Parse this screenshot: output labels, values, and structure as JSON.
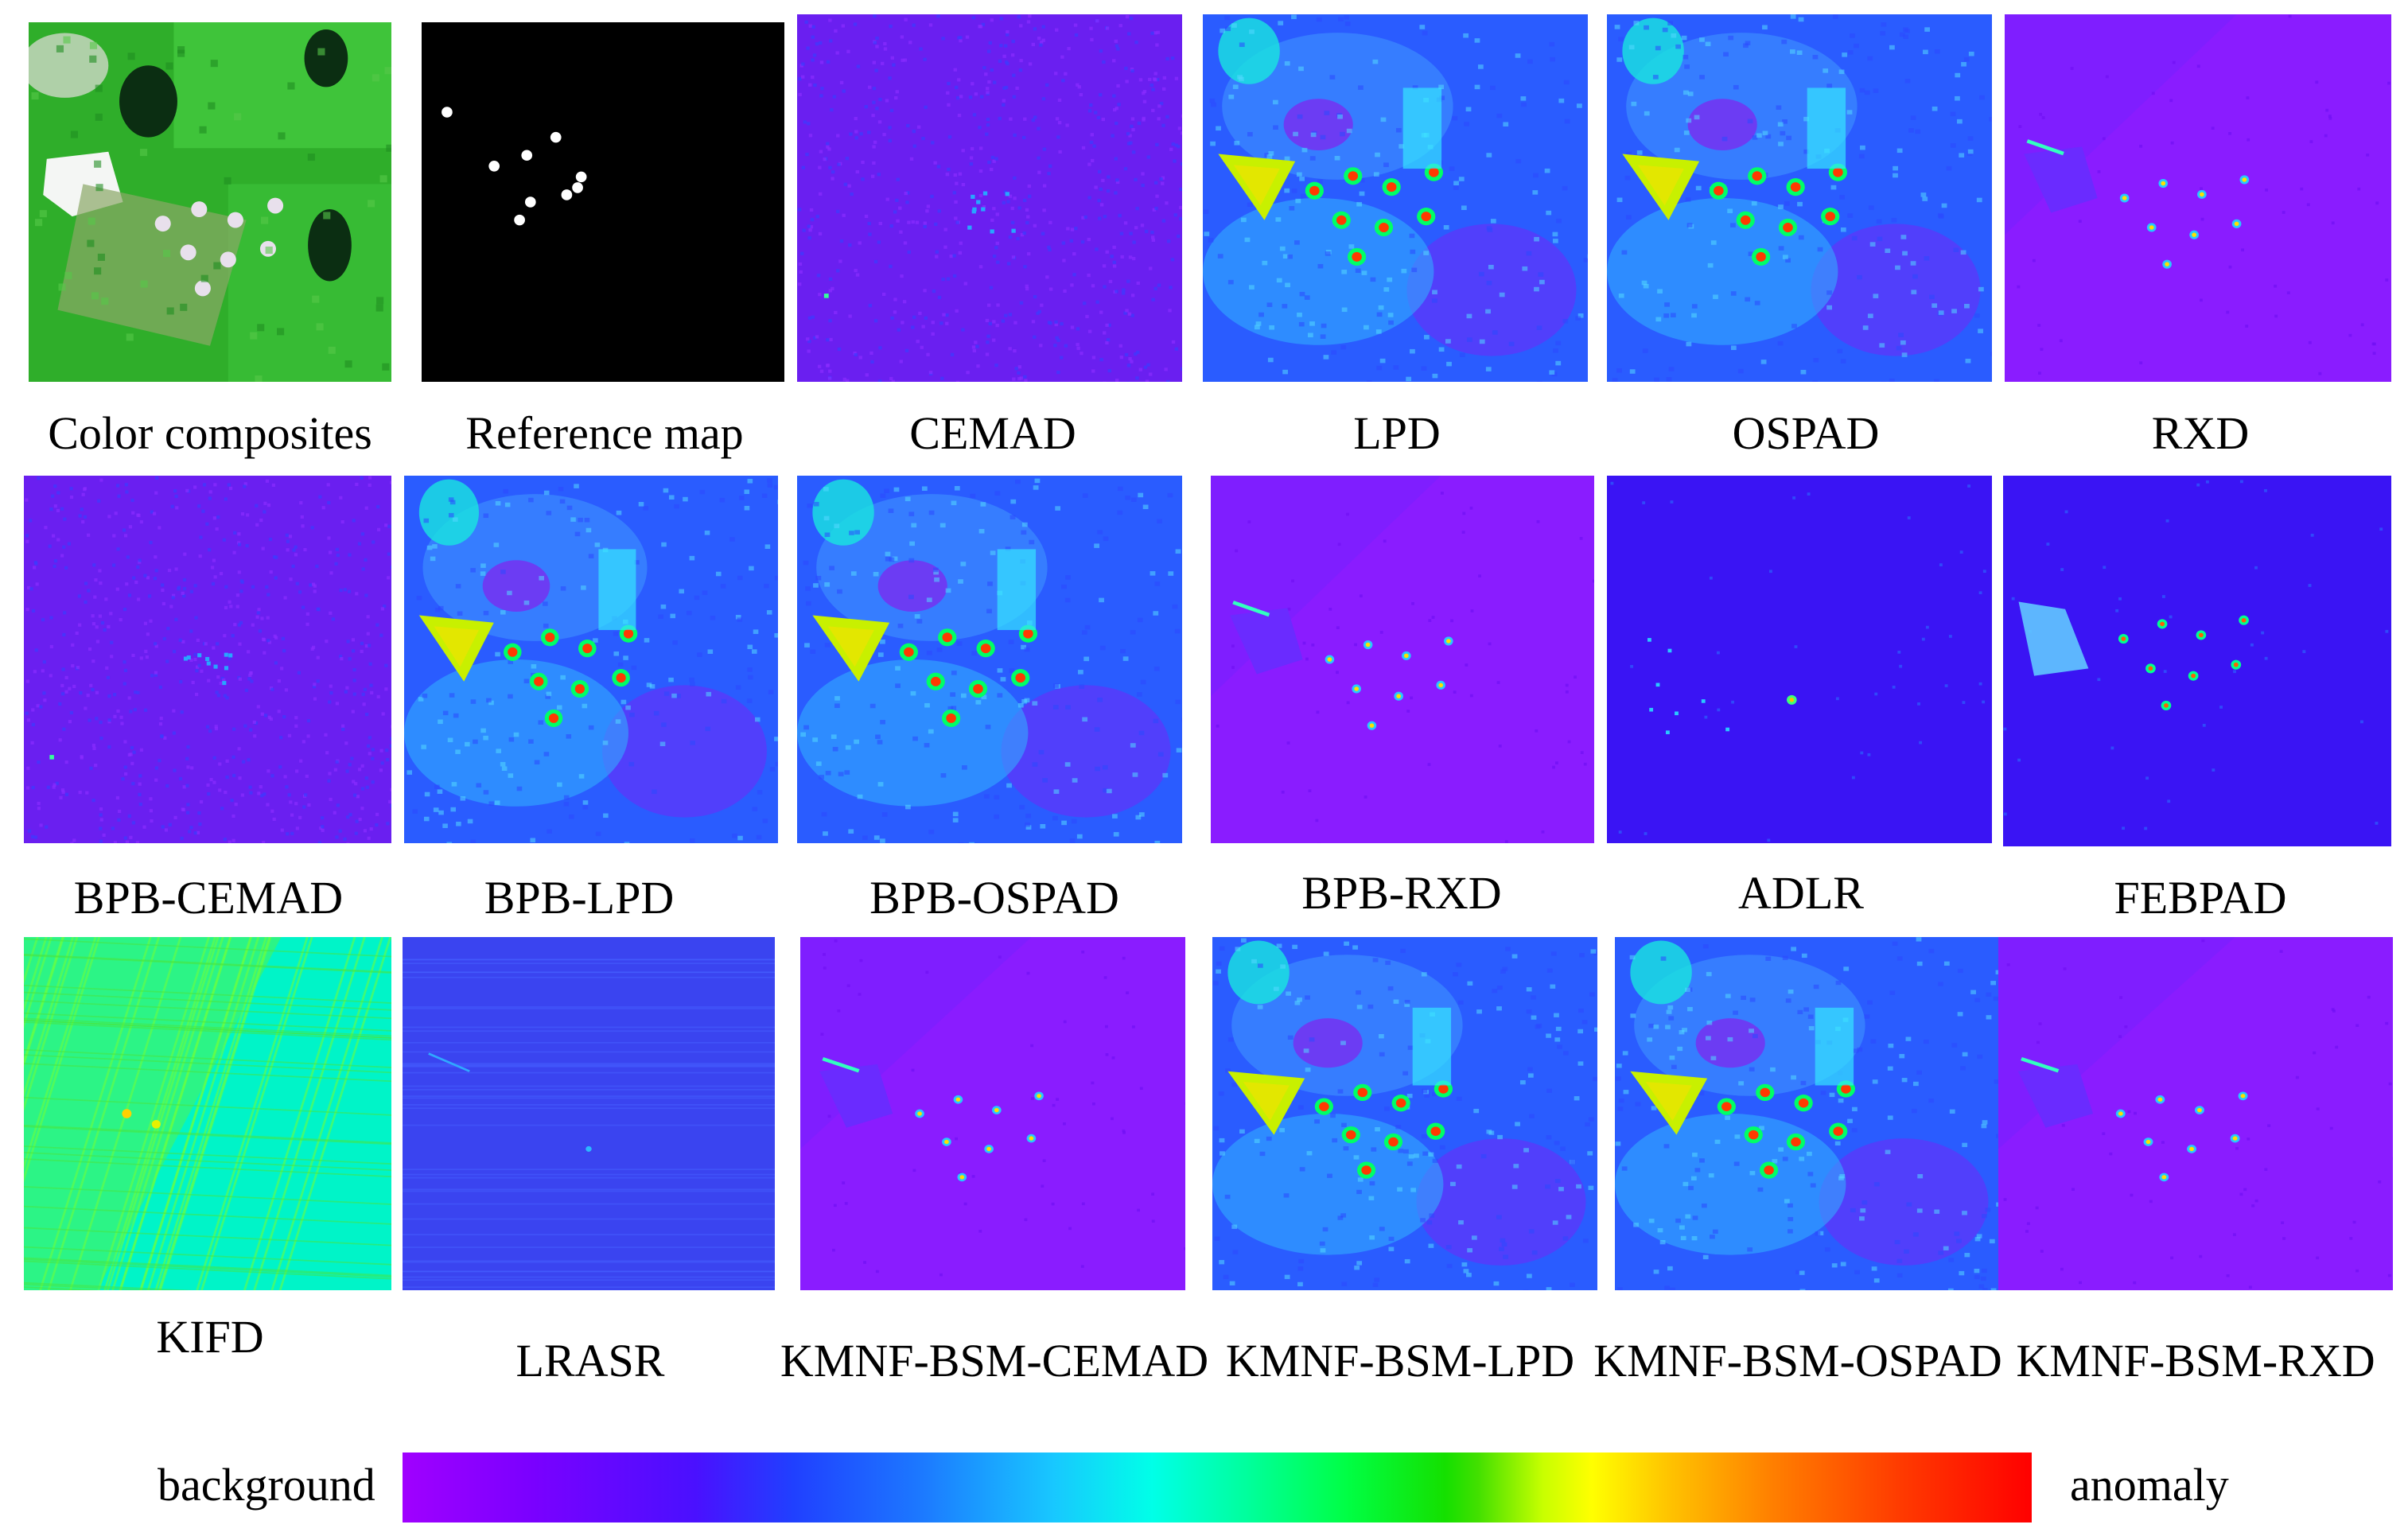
{
  "figure": {
    "panels": [
      {
        "caption": "Color composites",
        "style": "rgb"
      },
      {
        "caption": "Reference map",
        "style": "ref"
      },
      {
        "caption": "CEMAD",
        "style": "noise"
      },
      {
        "caption": "LPD",
        "style": "blue-full"
      },
      {
        "caption": "OSPAD",
        "style": "blue-full"
      },
      {
        "caption": "RXD",
        "style": "violet-sparse"
      },
      {
        "caption": "BPB-CEMAD",
        "style": "noise"
      },
      {
        "caption": "BPB-LPD",
        "style": "blue-full"
      },
      {
        "caption": "BPB-OSPAD",
        "style": "blue-full"
      },
      {
        "caption": "BPB-RXD",
        "style": "violet-sparse"
      },
      {
        "caption": "ADLR",
        "style": "blue-dark"
      },
      {
        "caption": "FEBPAD",
        "style": "blue-dark-bright"
      },
      {
        "caption": "KIFD",
        "style": "cyan-green"
      },
      {
        "caption": "LRASR",
        "style": "blue-flat"
      },
      {
        "caption": "KMNF-BSM-CEMAD",
        "style": "violet-sparse"
      },
      {
        "caption": "KMNF-BSM-LPD",
        "style": "blue-full"
      },
      {
        "caption": "KMNF-BSM-OSPAD",
        "style": "blue-full"
      },
      {
        "caption": "KMNF-BSM-RXD",
        "style": "violet-sparse"
      }
    ]
  },
  "colorbar": {
    "left_label": "background",
    "right_label": "anomaly",
    "colors": [
      "#a000ff",
      "#4a10ff",
      "#1c7aff",
      "#00ffe8",
      "#00ff44",
      "#ffff00",
      "#ff8000",
      "#ff0000"
    ]
  }
}
